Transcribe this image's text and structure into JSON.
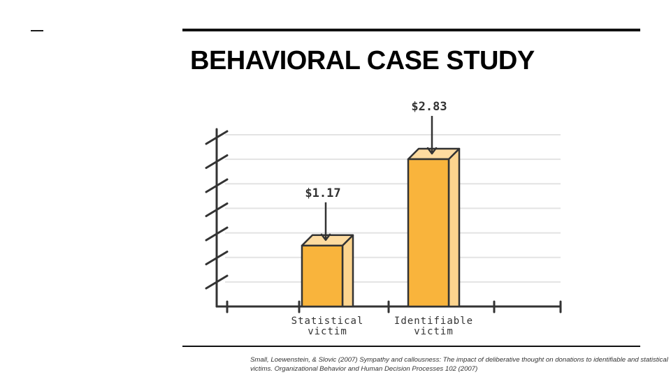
{
  "slide": {
    "title": "BEHAVIORAL CASE STUDY",
    "citation": "Small, Loewenstein, & Slovic (2007) Sympathy and callousness: The impact of deliberative thought on donations to identifiable and statistical victims. Organizational Behavior and Human Decision Processes 102 (2007)"
  },
  "chart_data": {
    "type": "bar",
    "categories": [
      [
        "Statistical",
        "victim"
      ],
      [
        "Identifiable",
        "victim"
      ]
    ],
    "values": [
      1.17,
      2.83
    ],
    "data_labels": [
      "$1.17",
      "$2.83"
    ],
    "title": "",
    "xlabel": "",
    "ylabel": "",
    "ylim": [
      0,
      3.3
    ],
    "grid": true,
    "legend": "none",
    "colors": {
      "bar_front": "#F9B43C",
      "bar_side": "#FCD48E",
      "bar_top": "#FDDBA0",
      "outline": "#333333",
      "grid": "#E3E3E3"
    }
  }
}
